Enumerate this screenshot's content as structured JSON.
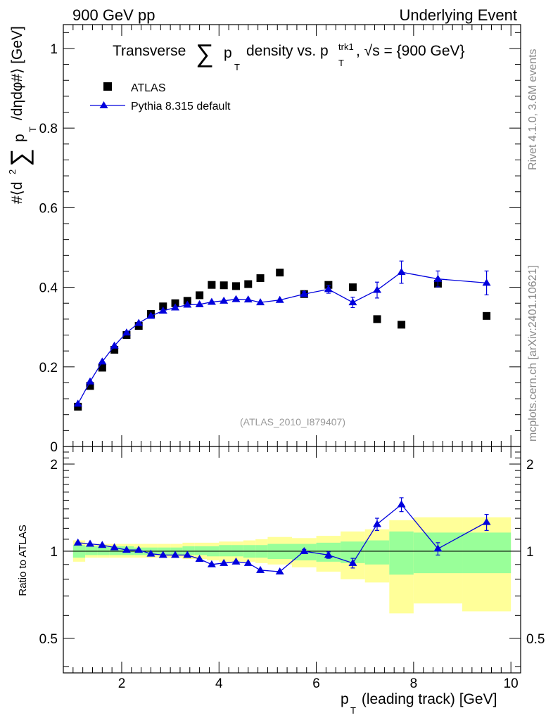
{
  "header": {
    "left": "900 GeV pp",
    "right": "Underlying Event"
  },
  "side_text": {
    "rivet": "Rivet 4.1.0,  3.6M events",
    "mcplots": "mcplots.cern.ch [arXiv:2401.10621]"
  },
  "chart_data": [
    {
      "type": "scatter",
      "panel": "main",
      "title_parts": {
        "a": "Transverse",
        "sum": "∑",
        "p": "p",
        "T": "T",
        "b": "density vs. p",
        "sup": "trk1",
        "c": ", √s = {900 GeV}"
      },
      "ylabel_parts": {
        "a": "#⟨d",
        "sq": "2",
        "sum": "∑",
        "p": "p",
        "T": "T",
        "b": "/dηdφ#⟩ [GeV]"
      },
      "watermark": "(ATLAS_2010_I879407)",
      "xlim": [
        0.8,
        10.2
      ],
      "ylim": [
        0,
        1.06
      ],
      "yticks": [
        0,
        0.2,
        0.4,
        0.6,
        0.8,
        1
      ],
      "ytick_labels": [
        "0",
        "0.2",
        "0.4",
        "0.6",
        "0.8",
        "1"
      ],
      "legend": {
        "position": "top-left",
        "entries": [
          "ATLAS",
          "Pythia 8.315 default"
        ]
      },
      "series": [
        {
          "name": "ATLAS",
          "marker": "square",
          "color": "#000000",
          "x": [
            1.1,
            1.35,
            1.6,
            1.85,
            2.1,
            2.35,
            2.6,
            2.85,
            3.1,
            3.35,
            3.6,
            3.85,
            4.1,
            4.35,
            4.6,
            4.85,
            5.25,
            5.75,
            6.25,
            6.75,
            7.25,
            7.75,
            8.5,
            9.5
          ],
          "y": [
            0.1,
            0.152,
            0.198,
            0.243,
            0.28,
            0.303,
            0.333,
            0.352,
            0.36,
            0.366,
            0.38,
            0.406,
            0.405,
            0.403,
            0.408,
            0.423,
            0.437,
            0.383,
            0.406,
            0.4,
            0.32,
            0.306,
            0.409,
            0.328
          ]
        },
        {
          "name": "Pythia 8.315 default",
          "marker": "triangle",
          "color": "#0000dd",
          "x": [
            1.1,
            1.35,
            1.6,
            1.85,
            2.1,
            2.35,
            2.6,
            2.85,
            3.1,
            3.35,
            3.6,
            3.85,
            4.1,
            4.35,
            4.6,
            4.85,
            5.25,
            5.75,
            6.25,
            6.75,
            7.25,
            7.75,
            8.5,
            9.5
          ],
          "y": [
            0.107,
            0.163,
            0.213,
            0.253,
            0.286,
            0.31,
            0.328,
            0.341,
            0.349,
            0.356,
            0.357,
            0.363,
            0.366,
            0.37,
            0.369,
            0.362,
            0.368,
            0.383,
            0.395,
            0.362,
            0.393,
            0.438,
            0.421,
            0.411
          ],
          "yerr": [
            0,
            0,
            0,
            0,
            0,
            0,
            0,
            0,
            0,
            0,
            0,
            0,
            0,
            0,
            0,
            0,
            0,
            0.006,
            0.01,
            0.013,
            0.02,
            0.028,
            0.02,
            0.03
          ]
        }
      ]
    },
    {
      "type": "line",
      "panel": "ratio",
      "ylabel": "Ratio to ATLAS",
      "xlabel_parts": {
        "p": "p",
        "T": "T",
        "rest": " (leading track) [GeV]"
      },
      "xlim": [
        0.8,
        10.2
      ],
      "ylim": [
        0.38,
        2.3
      ],
      "xticks": [
        2,
        4,
        6,
        8,
        10
      ],
      "xtick_labels": [
        "2",
        "4",
        "6",
        "8",
        "10"
      ],
      "yticks": [
        0.5,
        1,
        2
      ],
      "ytick_labels": [
        "0.5",
        "1",
        "2"
      ],
      "bands": {
        "edges": [
          1.0,
          1.25,
          1.5,
          1.75,
          2.0,
          2.25,
          2.5,
          2.75,
          3.0,
          3.25,
          3.5,
          3.75,
          4.0,
          4.25,
          4.5,
          4.75,
          5.0,
          5.5,
          6.0,
          6.5,
          7.0,
          7.5,
          8.0,
          9.0,
          10.0
        ],
        "yellow_lo": [
          0.92,
          0.95,
          0.95,
          0.95,
          0.95,
          0.95,
          0.95,
          0.95,
          0.95,
          0.94,
          0.94,
          0.93,
          0.92,
          0.92,
          0.92,
          0.91,
          0.9,
          0.88,
          0.85,
          0.8,
          0.78,
          0.61,
          0.66,
          0.62
        ],
        "yellow_hi": [
          1.09,
          1.06,
          1.06,
          1.06,
          1.06,
          1.06,
          1.06,
          1.06,
          1.06,
          1.07,
          1.07,
          1.07,
          1.08,
          1.08,
          1.09,
          1.1,
          1.12,
          1.11,
          1.13,
          1.17,
          1.19,
          1.28,
          1.31,
          1.31
        ],
        "green_lo": [
          0.95,
          0.97,
          0.97,
          0.97,
          0.97,
          0.97,
          0.97,
          0.97,
          0.97,
          0.97,
          0.97,
          0.96,
          0.96,
          0.96,
          0.95,
          0.95,
          0.94,
          0.93,
          0.92,
          0.91,
          0.9,
          0.83,
          0.84,
          0.84
        ],
        "green_hi": [
          1.05,
          1.04,
          1.04,
          1.04,
          1.04,
          1.03,
          1.03,
          1.03,
          1.03,
          1.04,
          1.04,
          1.04,
          1.05,
          1.05,
          1.05,
          1.05,
          1.06,
          1.06,
          1.07,
          1.08,
          1.09,
          1.17,
          1.16,
          1.16
        ]
      },
      "series": [
        {
          "name": "Pythia 8.315 default / ATLAS",
          "color": "#0000dd",
          "x": [
            1.1,
            1.35,
            1.6,
            1.85,
            2.1,
            2.35,
            2.6,
            2.85,
            3.1,
            3.35,
            3.6,
            3.85,
            4.1,
            4.35,
            4.6,
            4.85,
            5.25,
            5.75,
            6.25,
            6.75,
            7.25,
            7.75,
            8.5,
            9.5
          ],
          "y": [
            1.07,
            1.06,
            1.05,
            1.03,
            1.01,
            1.01,
            0.98,
            0.97,
            0.97,
            0.97,
            0.94,
            0.9,
            0.91,
            0.92,
            0.91,
            0.86,
            0.85,
            1.0,
            0.97,
            0.91,
            1.24,
            1.45,
            1.02,
            1.26
          ],
          "yerr": [
            0,
            0,
            0,
            0,
            0,
            0,
            0,
            0,
            0,
            0,
            0,
            0,
            0,
            0,
            0,
            0,
            0,
            0.015,
            0.025,
            0.035,
            0.06,
            0.08,
            0.05,
            0.08
          ]
        }
      ]
    }
  ]
}
